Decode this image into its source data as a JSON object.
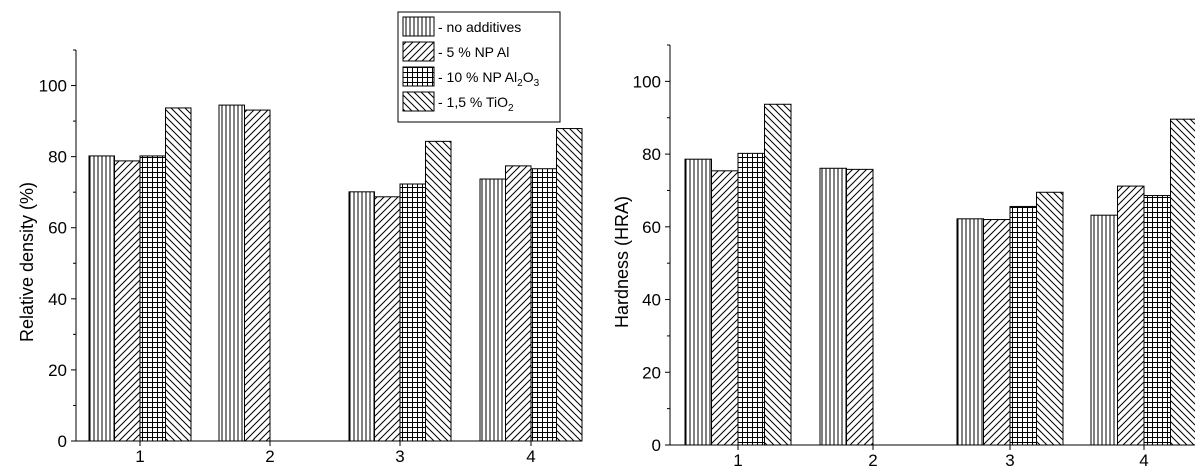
{
  "chart_data": [
    {
      "type": "bar",
      "categories": [
        "1",
        "2",
        "3",
        "4"
      ],
      "ylabel": "Relative density (%)",
      "xlabel": "",
      "ylim": [
        0,
        110
      ],
      "yticks": [
        "0",
        "20",
        "40",
        "60",
        "80",
        "100"
      ],
      "series": [
        {
          "name": "- no additives",
          "values": [
            80.2,
            94.5,
            70.1,
            73.7
          ]
        },
        {
          "name": "- 5 % NP Al",
          "values": [
            78.8,
            93.1,
            68.7,
            77.4
          ]
        },
        {
          "name": "- 10 % NP Al2O3",
          "values": [
            80.2,
            null,
            72.3,
            76.6
          ]
        },
        {
          "name": "- 1,5 % TiO2",
          "values": [
            93.7,
            null,
            84.3,
            87.9
          ]
        }
      ],
      "legend": "top-right",
      "grid": false
    },
    {
      "type": "bar",
      "categories": [
        "1",
        "2",
        "3",
        "4"
      ],
      "ylabel": "Hardness (HRA)",
      "xlabel": "",
      "ylim": [
        0,
        110
      ],
      "yticks": [
        "0",
        "20",
        "40",
        "60",
        "80",
        "100"
      ],
      "series": [
        {
          "name": "- no additives",
          "values": [
            78.6,
            76.1,
            62.2,
            63.2
          ]
        },
        {
          "name": "- 5 % NP Al",
          "values": [
            75.4,
            75.8,
            62.0,
            71.2
          ]
        },
        {
          "name": "- 10 % NP Al2O3",
          "values": [
            80.2,
            null,
            65.6,
            68.6
          ]
        },
        {
          "name": "- 1,5 % TiO2",
          "values": [
            93.7,
            null,
            69.5,
            89.6
          ]
        }
      ],
      "grid": false
    }
  ],
  "legend": {
    "items": [
      {
        "base": "- no additives",
        "pattern": "vertical-lines"
      },
      {
        "base": "- 5 % NP Al",
        "pattern": "diagonal-up"
      },
      {
        "base": "- 10 % NP Al",
        "sub1": "2",
        "mid": "O",
        "sub2": "3",
        "pattern": "crosshatch"
      },
      {
        "base": "- 1,5 % TiO",
        "sub1": "2",
        "pattern": "diagonal-down"
      }
    ]
  }
}
